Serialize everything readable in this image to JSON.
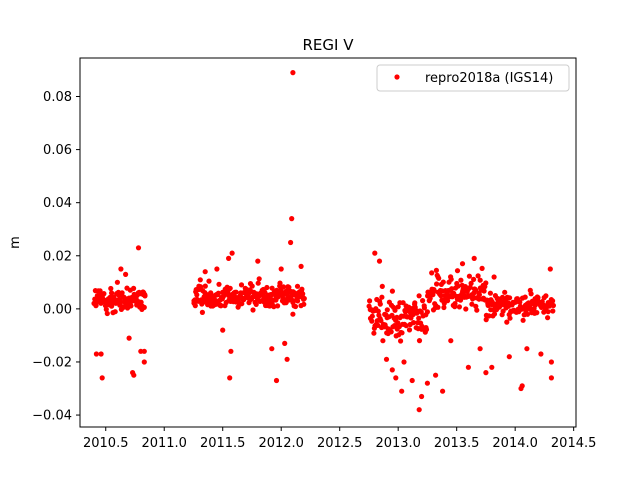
{
  "chart_data": {
    "type": "scatter",
    "title": "REGI V",
    "xlabel": "",
    "ylabel": "m",
    "xlim": [
      2010.28,
      2014.52
    ],
    "ylim": [
      -0.0445,
      0.0945
    ],
    "xticks": [
      2010.5,
      2011.0,
      2011.5,
      2012.0,
      2012.5,
      2013.0,
      2013.5,
      2014.0,
      2014.5
    ],
    "xtick_labels": [
      "2010.5",
      "2011.0",
      "2011.5",
      "2012.0",
      "2012.5",
      "2013.0",
      "2013.5",
      "2014.0",
      "2014.5"
    ],
    "yticks": [
      -0.04,
      -0.02,
      0.0,
      0.02,
      0.04,
      0.06,
      0.08
    ],
    "ytick_labels": [
      "−0.04",
      "−0.02",
      "0.00",
      "0.02",
      "0.04",
      "0.06",
      "0.08"
    ],
    "grid": false,
    "legend_position": "top-right",
    "series": [
      {
        "name": "repro2018a (IGS14)",
        "color": "#ff0000",
        "marker": "circle",
        "segments": [
          {
            "x_start": 2010.4,
            "x_end": 2010.84,
            "center": 0.003,
            "spread": 0.004
          },
          {
            "x_start": 2011.25,
            "x_end": 2012.2,
            "center": 0.005,
            "spread": 0.004
          },
          {
            "x_start": 2012.75,
            "x_end": 2013.25,
            "center": -0.003,
            "spread": 0.008
          },
          {
            "x_start": 2013.25,
            "x_end": 2013.75,
            "center": 0.006,
            "spread": 0.006
          },
          {
            "x_start": 2013.75,
            "x_end": 2014.33,
            "center": 0.001,
            "spread": 0.004
          }
        ],
        "points": [
          [
            2010.42,
            -0.017
          ],
          [
            2010.46,
            -0.017
          ],
          [
            2010.47,
            -0.026
          ],
          [
            2010.55,
            0.001
          ],
          [
            2010.6,
            0.01
          ],
          [
            2010.63,
            0.015
          ],
          [
            2010.67,
            0.013
          ],
          [
            2010.7,
            -0.011
          ],
          [
            2010.73,
            -0.024
          ],
          [
            2010.74,
            -0.025
          ],
          [
            2010.78,
            0.023
          ],
          [
            2010.8,
            -0.016
          ],
          [
            2010.83,
            -0.02
          ],
          [
            2010.83,
            -0.016
          ],
          [
            2011.35,
            0.014
          ],
          [
            2011.45,
            0.015
          ],
          [
            2011.5,
            -0.008
          ],
          [
            2011.55,
            0.019
          ],
          [
            2011.57,
            -0.016
          ],
          [
            2011.58,
            0.021
          ],
          [
            2011.56,
            -0.026
          ],
          [
            2011.8,
            0.018
          ],
          [
            2011.92,
            -0.015
          ],
          [
            2011.96,
            -0.027
          ],
          [
            2012.0,
            0.015
          ],
          [
            2012.03,
            -0.013
          ],
          [
            2012.05,
            -0.019
          ],
          [
            2012.08,
            0.025
          ],
          [
            2012.09,
            0.034
          ],
          [
            2012.1,
            0.089
          ],
          [
            2012.1,
            -0.002
          ],
          [
            2012.17,
            0.016
          ],
          [
            2012.8,
            0.021
          ],
          [
            2012.84,
            0.018
          ],
          [
            2012.9,
            -0.019
          ],
          [
            2012.95,
            -0.023
          ],
          [
            2012.98,
            -0.026
          ],
          [
            2013.03,
            -0.031
          ],
          [
            2013.05,
            -0.02
          ],
          [
            2013.12,
            -0.027
          ],
          [
            2013.18,
            -0.038
          ],
          [
            2013.2,
            -0.033
          ],
          [
            2013.25,
            -0.028
          ],
          [
            2013.32,
            -0.025
          ],
          [
            2013.34,
            0.012
          ],
          [
            2013.38,
            -0.031
          ],
          [
            2013.45,
            -0.012
          ],
          [
            2013.55,
            0.017
          ],
          [
            2013.6,
            -0.022
          ],
          [
            2013.65,
            0.019
          ],
          [
            2013.7,
            -0.015
          ],
          [
            2013.75,
            -0.024
          ],
          [
            2013.8,
            -0.022
          ],
          [
            2013.82,
            0.012
          ],
          [
            2013.95,
            -0.018
          ],
          [
            2014.05,
            -0.03
          ],
          [
            2014.06,
            -0.029
          ],
          [
            2014.1,
            -0.015
          ],
          [
            2014.22,
            -0.017
          ],
          [
            2014.3,
            0.015
          ],
          [
            2014.31,
            -0.02
          ],
          [
            2014.31,
            -0.026
          ]
        ]
      }
    ]
  }
}
